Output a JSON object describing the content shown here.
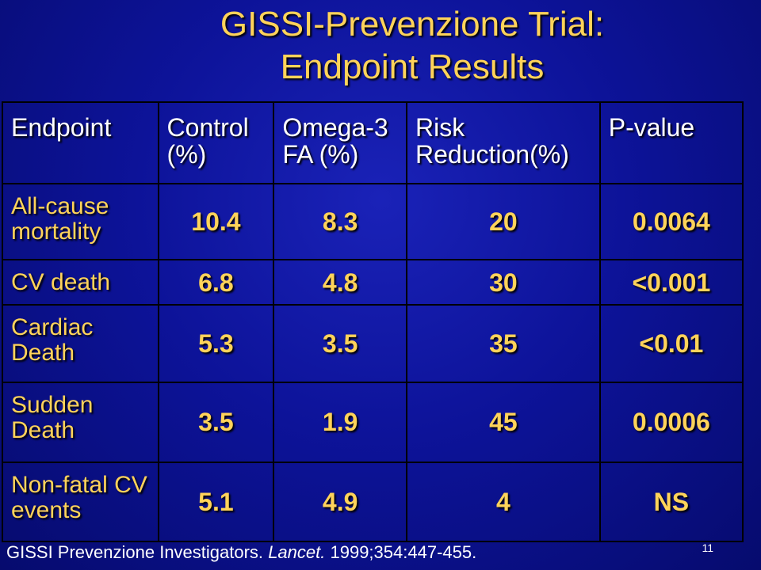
{
  "title": {
    "line1": "GISSI-Prevenzione Trial:",
    "line2": "Endpoint Results"
  },
  "table": {
    "headers": [
      "Endpoint",
      "Control (%)",
      "Omega-3 FA (%)",
      "Risk Reduction(%)",
      "P-value"
    ],
    "rows": [
      {
        "endpoint": "All-cause mortality",
        "control": "10.4",
        "omega3": "8.3",
        "risk_reduction": "20",
        "p_value": "0.0064"
      },
      {
        "endpoint": "CV death",
        "control": "6.8",
        "omega3": "4.8",
        "risk_reduction": "30",
        "p_value": "<0.001"
      },
      {
        "endpoint": "Cardiac Death",
        "control": "5.3",
        "omega3": "3.5",
        "risk_reduction": "35",
        "p_value": "<0.01"
      },
      {
        "endpoint": "Sudden Death",
        "control": "3.5",
        "omega3": "1.9",
        "risk_reduction": "45",
        "p_value": "0.0006"
      },
      {
        "endpoint": "Non-fatal CV events",
        "control": "5.1",
        "omega3": "4.9",
        "risk_reduction": "4",
        "p_value": "NS"
      }
    ]
  },
  "footnote": {
    "authors": "GISSI Prevenzione Investigators.",
    "journal": "Lancet.",
    "citation": "1999;354:447-455."
  },
  "slide_number": "11",
  "colors": {
    "title": "#ffd35a",
    "values": "#ffd35a",
    "header_text": "#ffffff",
    "background": "#0d1399"
  }
}
